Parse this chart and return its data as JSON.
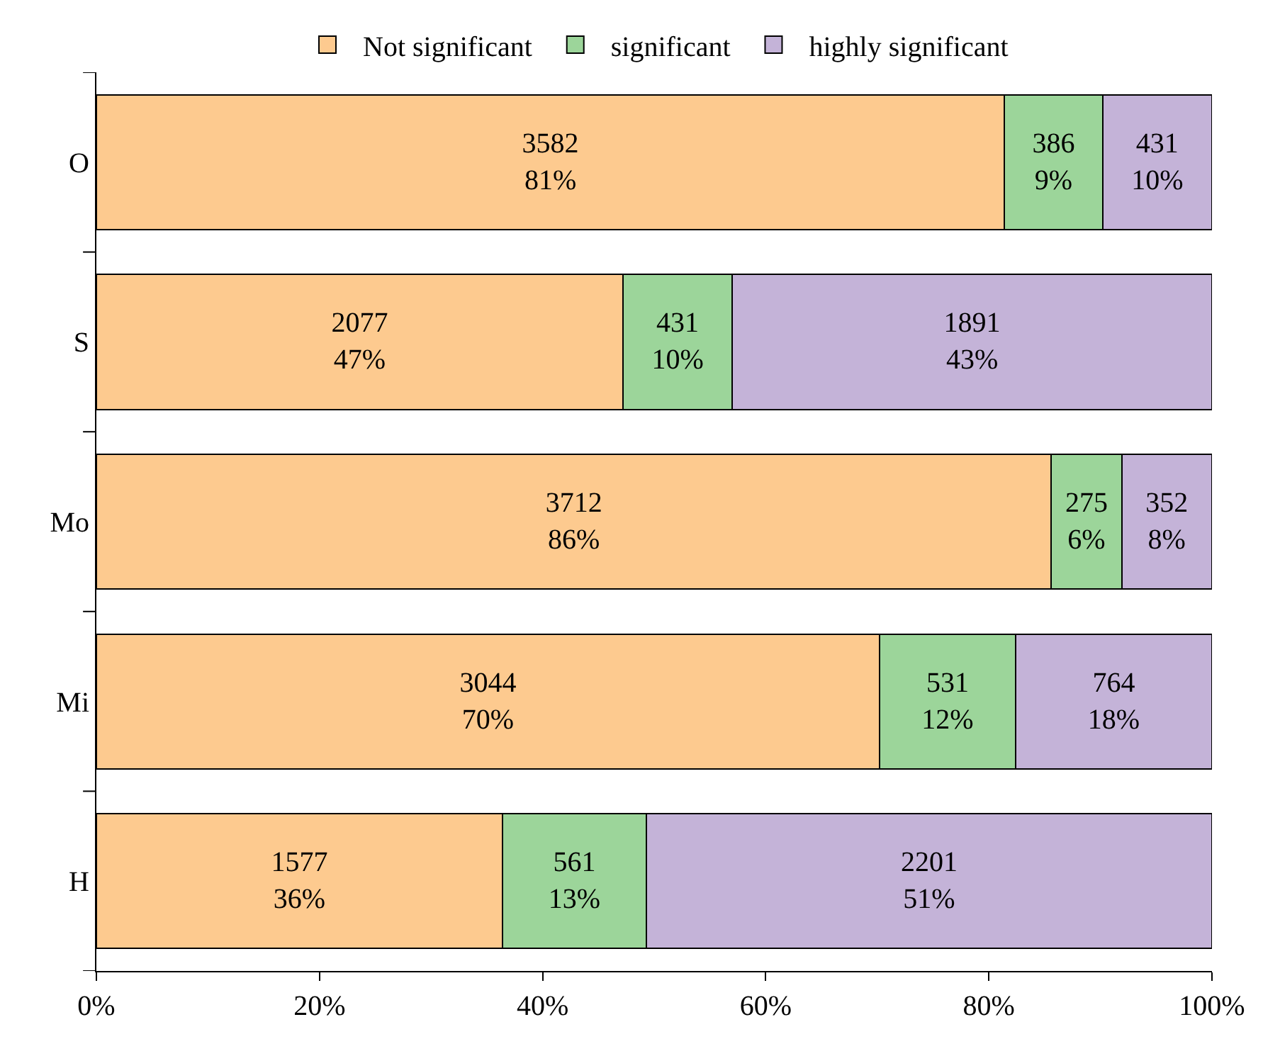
{
  "chart_data": {
    "type": "bar",
    "orientation": "horizontal",
    "stacked": true,
    "categories": [
      "O",
      "S",
      "Mo",
      "Mi",
      "H"
    ],
    "series": [
      {
        "name": "Not significant",
        "color": "#fdca8f",
        "values": [
          81.4,
          47.2,
          85.6,
          70.2,
          36.4
        ],
        "value_labels": [
          "3582\n81%",
          "2077\n47%",
          "3712\n86%",
          "3044\n70%",
          "1577\n36%"
        ]
      },
      {
        "name": "significant",
        "color": "#9cd59a",
        "values": [
          8.8,
          9.8,
          6.3,
          12.2,
          12.9
        ],
        "value_labels": [
          "386\n9%",
          "431\n10%",
          "275\n6%",
          "531\n12%",
          "561\n13%"
        ]
      },
      {
        "name": "highly significant",
        "color": "#c4b3d8",
        "values": [
          9.8,
          43.0,
          8.1,
          17.6,
          50.7
        ],
        "value_labels": [
          "431\n10%",
          "1891\n43%",
          "352\n8%",
          "764\n18%",
          "2201\n51%"
        ]
      }
    ],
    "xlim": [
      0,
      100
    ],
    "xticks": [
      {
        "value": 0,
        "label": "0%"
      },
      {
        "value": 20,
        "label": "20%"
      },
      {
        "value": 40,
        "label": "40%"
      },
      {
        "value": 60,
        "label": "60%"
      },
      {
        "value": 80,
        "label": "80%"
      },
      {
        "value": 100,
        "label": "100%"
      }
    ],
    "grid": false,
    "legend": "top"
  }
}
